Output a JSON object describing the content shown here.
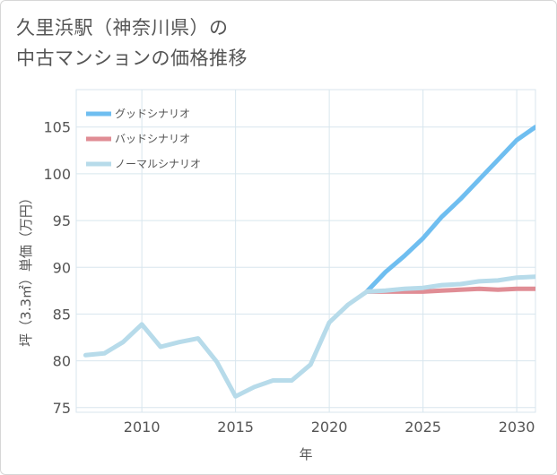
{
  "chart_data": {
    "type": "line",
    "title_lines": [
      "久里浜駅（神奈川県）の",
      "中古マンションの価格推移"
    ],
    "xlabel": "年",
    "ylabel": "坪（3.3㎡）単価（万円）",
    "xlim": [
      2006.5,
      2031
    ],
    "ylim": [
      74.5,
      109
    ],
    "xticks": [
      2010,
      2015,
      2020,
      2025,
      2030
    ],
    "yticks": [
      75,
      80,
      85,
      90,
      95,
      100,
      105
    ],
    "grid": true,
    "legend_position": "top-left",
    "series": [
      {
        "name": "グッドシナリオ",
        "color": "#6fbef0",
        "x": [
          2022,
          2023,
          2024,
          2025,
          2026,
          2027,
          2028,
          2029,
          2030,
          2031
        ],
        "y": [
          87.4,
          89.5,
          91.2,
          93.1,
          95.4,
          97.3,
          99.4,
          101.5,
          103.6,
          105.0
        ]
      },
      {
        "name": "バッドシナリオ",
        "color": "#e08d95",
        "x": [
          2022,
          2023,
          2024,
          2025,
          2026,
          2027,
          2028,
          2029,
          2030,
          2031
        ],
        "y": [
          87.4,
          87.4,
          87.4,
          87.4,
          87.5,
          87.6,
          87.7,
          87.6,
          87.7,
          87.7
        ]
      },
      {
        "name": "ノーマルシナリオ",
        "color": "#b7dbea",
        "x": [
          2007,
          2008,
          2009,
          2010,
          2011,
          2012,
          2013,
          2014,
          2015,
          2016,
          2017,
          2018,
          2019,
          2020,
          2021,
          2022,
          2023,
          2024,
          2025,
          2026,
          2027,
          2028,
          2029,
          2030,
          2031
        ],
        "y": [
          80.6,
          80.8,
          82.0,
          83.9,
          81.5,
          82.0,
          82.4,
          79.9,
          76.2,
          77.2,
          77.9,
          77.9,
          79.6,
          84.1,
          86.0,
          87.4,
          87.5,
          87.7,
          87.8,
          88.1,
          88.2,
          88.5,
          88.6,
          88.9,
          89.0
        ]
      }
    ]
  }
}
